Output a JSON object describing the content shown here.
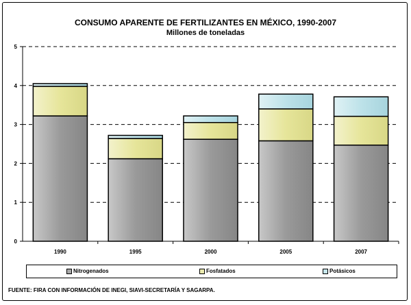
{
  "chart_data": {
    "type": "bar",
    "stacked": true,
    "title": "CONSUMO APARENTE DE FERTILIZANTES EN MÉXICO, 1990-2007",
    "subtitle": "Millones de toneladas",
    "categories": [
      "1990",
      "1995",
      "2000",
      "2005",
      "2007"
    ],
    "series": [
      {
        "name": "Nitrogenados",
        "values": [
          3.22,
          2.12,
          2.62,
          2.58,
          2.47
        ],
        "color": "#a8a8a8"
      },
      {
        "name": "Fosfatados",
        "values": [
          0.76,
          0.52,
          0.43,
          0.82,
          0.74
        ],
        "color": "#ecebb0"
      },
      {
        "name": "Potásicos",
        "values": [
          0.07,
          0.08,
          0.17,
          0.38,
          0.5
        ],
        "color": "#c6e6ec"
      }
    ],
    "ylim": [
      0,
      5
    ],
    "yticks": [
      "0",
      "1",
      "2",
      "3",
      "4",
      "5"
    ],
    "grid": true,
    "legend": "bottom",
    "source": "FUENTE: FIRA CON INFORMACIÓN DE INEGI, SIAVI-SECRETARÍA Y SAGARPA."
  }
}
